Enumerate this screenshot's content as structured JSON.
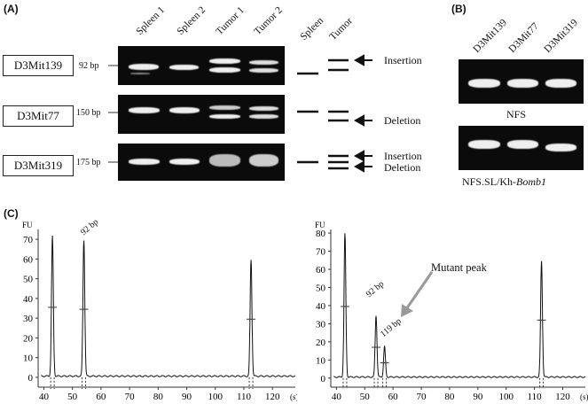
{
  "panels": {
    "a": "(A)",
    "b": "(B)",
    "c": "(C)"
  },
  "panel_a": {
    "lanes": [
      "Spleen 1",
      "Spleen 2",
      "Tumor 1",
      "Tumor 2"
    ],
    "schematic_lanes": [
      "Spleen",
      "Tumor"
    ],
    "loci": [
      {
        "name": "D3Mit139",
        "bp": "92 bp",
        "annotations": [
          "Insertion"
        ]
      },
      {
        "name": "D3Mit77",
        "bp": "150 bp",
        "annotations": [
          "Deletion"
        ]
      },
      {
        "name": "D3Mit319",
        "bp": "175 bp",
        "annotations": [
          "Insertion",
          "Deletion"
        ]
      }
    ]
  },
  "panel_b": {
    "lanes": [
      "D3Mit139",
      "D3Mit77",
      "D3Mit319"
    ],
    "caption_top": "NFS",
    "caption_bottom_prefix": "NFS.SL/Kh-",
    "caption_bottom_italic": "Bomb1"
  },
  "panel_c": {
    "y_unit": "FU",
    "x_unit": "(s)",
    "left": {
      "peak_label": "92 bp"
    },
    "right": {
      "peak_label_1": "92 bp",
      "peak_label_2": "119 bp",
      "annotation": "Mutant peak"
    }
  },
  "chart_data": [
    {
      "type": "line",
      "xlabel": "(s)",
      "ylabel": "FU",
      "xlim": [
        38,
        128
      ],
      "ylim": [
        -5,
        75
      ],
      "x_ticks": [
        40,
        50,
        60,
        70,
        80,
        90,
        100,
        110,
        120
      ],
      "y_ticks": [
        0,
        10,
        20,
        30,
        40,
        50,
        60,
        70
      ],
      "series": [
        {
          "peaks": [
            {
              "x": 43,
              "y": 71
            },
            {
              "x": 54,
              "y": 69
            },
            {
              "x": 112.5,
              "y": 59
            }
          ]
        }
      ]
    },
    {
      "type": "line",
      "xlabel": "(s)",
      "ylabel": "FU",
      "xlim": [
        38,
        128
      ],
      "ylim": [
        -5,
        82
      ],
      "x_ticks": [
        40,
        50,
        60,
        70,
        80,
        90,
        100,
        110,
        120
      ],
      "y_ticks": [
        0,
        10,
        20,
        30,
        40,
        50,
        60,
        70,
        80
      ],
      "series": [
        {
          "peaks": [
            {
              "x": 43,
              "y": 79
            },
            {
              "x": 54,
              "y": 34
            },
            {
              "x": 57,
              "y": 17
            },
            {
              "x": 112.5,
              "y": 64
            }
          ]
        }
      ]
    }
  ]
}
